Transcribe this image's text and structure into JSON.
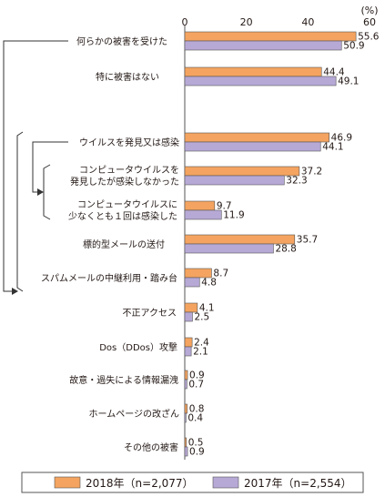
{
  "chart_data": {
    "type": "bar",
    "orientation": "horizontal",
    "unit": "(%)",
    "xlim": [
      0,
      60
    ],
    "xticks": [
      "0",
      "20",
      "40",
      "60"
    ],
    "grid": false,
    "legend_position": "bottom",
    "categories": [
      "何らかの被害を受けた",
      "特に被害はない",
      "ウイルスを発見又は感染",
      "コンピュータウイルスを 発見したが感染しなかった",
      "コンピュータウイルスに 少なくとも１回は感染した",
      "標的型メールの送付",
      "スパムメールの中継利用・踏み台",
      "不正アクセス",
      "Dos（DDos）攻撃",
      "故意・過失による情報漏洩",
      "ホームページの改ざん",
      "その他の被害"
    ],
    "series": [
      {
        "name": "2018年（n=2,077）",
        "color": "#f4a460",
        "values": [
          55.6,
          44.4,
          46.9,
          37.2,
          9.7,
          35.7,
          8.7,
          4.1,
          2.4,
          0.9,
          0.8,
          0.5
        ],
        "labels": [
          "55.6",
          "44.4",
          "46.9",
          "37.2",
          "9.7",
          "35.7",
          "8.7",
          "4.1",
          "2.4",
          "0.9",
          "0.8",
          "0.5"
        ]
      },
      {
        "name": "2017年（n=2,554）",
        "color": "#b7a9d6",
        "values": [
          50.9,
          49.1,
          44.1,
          32.3,
          11.9,
          28.8,
          4.8,
          2.5,
          2.1,
          0.7,
          0.4,
          0.9
        ],
        "labels": [
          "50.9",
          "49.1",
          "44.1",
          "32.3",
          "11.9",
          "28.8",
          "4.8",
          "2.5",
          "2.1",
          "0.7",
          "0.4",
          "0.9"
        ]
      }
    ]
  }
}
